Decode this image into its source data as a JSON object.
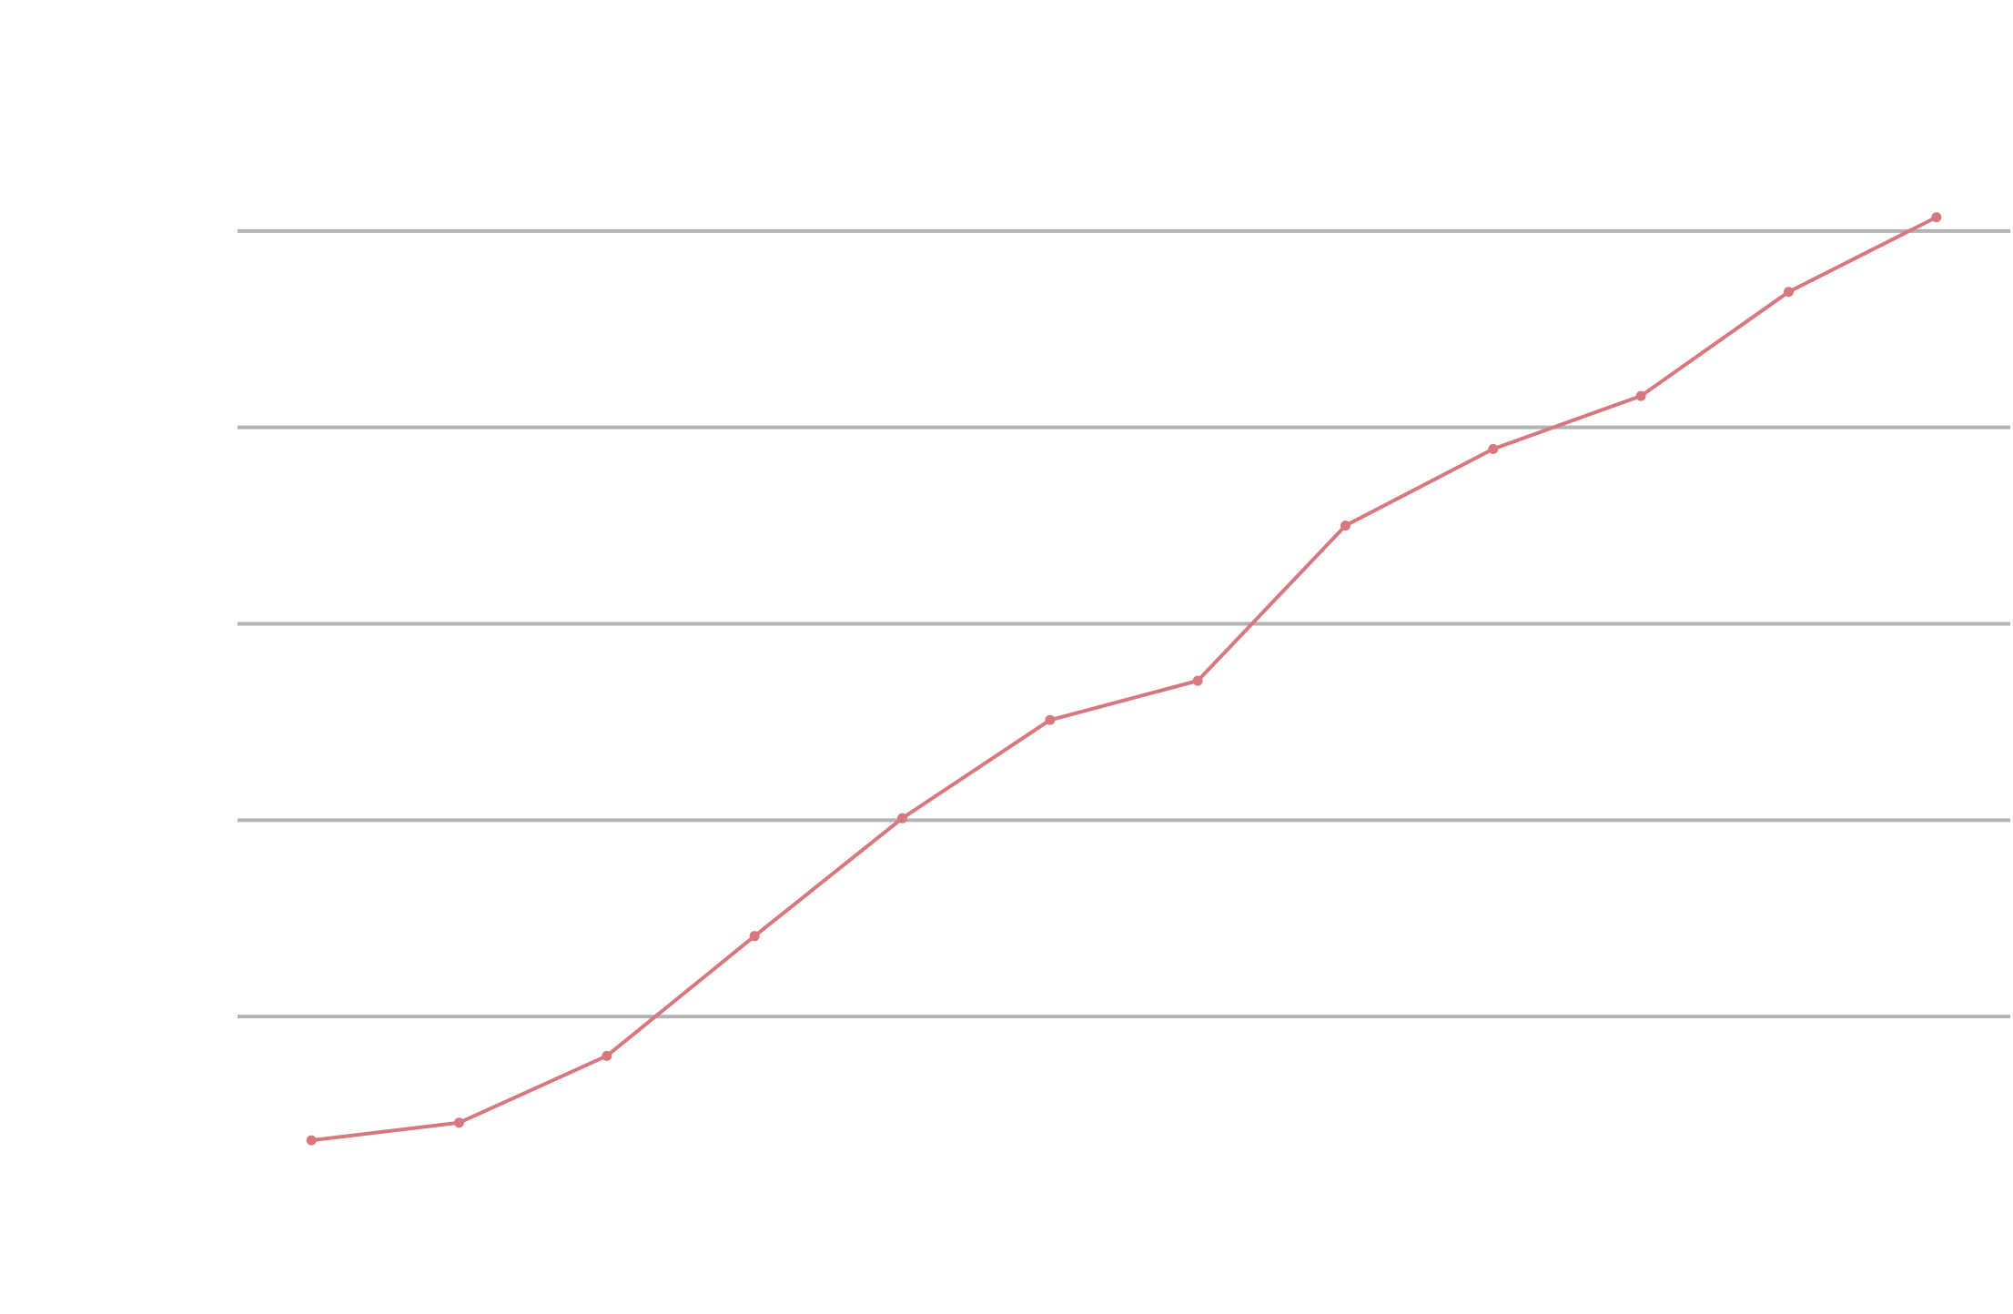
{
  "chart_data": {
    "type": "line",
    "categories": [
      null,
      null,
      null,
      null,
      null,
      null,
      null,
      null,
      null,
      null,
      null,
      null
    ],
    "series": [
      {
        "color": "#d9777f",
        "values": [
          0.37,
          0.46,
          0.8,
          1.41,
          2.01,
          2.51,
          2.71,
          3.5,
          3.89,
          4.16,
          4.69,
          5.07
        ]
      }
    ],
    "ylim": [
      0,
      6
    ],
    "yticks": [
      1,
      2,
      3,
      4,
      5
    ],
    "grid": true
  }
}
